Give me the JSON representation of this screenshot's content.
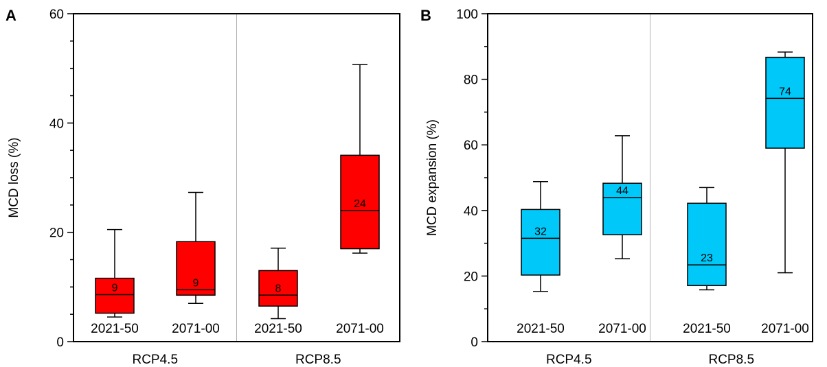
{
  "chart_data": [
    {
      "type": "box",
      "panel_label": "A",
      "ylabel": "MCD loss (%)",
      "ylim": [
        0,
        60
      ],
      "yticks": [
        0,
        20,
        40,
        60
      ],
      "color": "#ff0000",
      "groups": [
        "RCP4.5",
        "RCP8.5"
      ],
      "periods": [
        "2021-50",
        "2071-00"
      ],
      "boxes": [
        {
          "group": "RCP4.5",
          "period": "2021-50",
          "whisker_low": 4.5,
          "q1": 5.2,
          "median": 8.6,
          "q3": 11.6,
          "whisker_high": 20.5,
          "label": "9"
        },
        {
          "group": "RCP4.5",
          "period": "2071-00",
          "whisker_low": 7.0,
          "q1": 8.5,
          "median": 9.5,
          "q3": 18.3,
          "whisker_high": 27.3,
          "label": "9"
        },
        {
          "group": "RCP8.5",
          "period": "2021-50",
          "whisker_low": 4.2,
          "q1": 6.5,
          "median": 8.5,
          "q3": 13.0,
          "whisker_high": 17.1,
          "label": "8"
        },
        {
          "group": "RCP8.5",
          "period": "2071-00",
          "whisker_low": 16.2,
          "q1": 17.0,
          "median": 24.0,
          "q3": 34.1,
          "whisker_high": 50.7,
          "label": "24"
        }
      ]
    },
    {
      "type": "box",
      "panel_label": "B",
      "ylabel": "MCD expansion (%)",
      "ylim": [
        0,
        100
      ],
      "yticks": [
        0,
        20,
        40,
        60,
        80,
        100
      ],
      "color": "#00c8f8",
      "groups": [
        "RCP4.5",
        "RCP8.5"
      ],
      "periods": [
        "2021-50",
        "2071-00"
      ],
      "boxes": [
        {
          "group": "RCP4.5",
          "period": "2021-50",
          "whisker_low": 15.3,
          "q1": 20.3,
          "median": 31.5,
          "q3": 40.3,
          "whisker_high": 48.8,
          "label": "32"
        },
        {
          "group": "RCP4.5",
          "period": "2071-00",
          "whisker_low": 25.3,
          "q1": 32.6,
          "median": 43.9,
          "q3": 48.3,
          "whisker_high": 62.8,
          "label": "44"
        },
        {
          "group": "RCP8.5",
          "period": "2021-50",
          "whisker_low": 15.8,
          "q1": 17.1,
          "median": 23.4,
          "q3": 42.2,
          "whisker_high": 47.0,
          "label": "23"
        },
        {
          "group": "RCP8.5",
          "period": "2071-00",
          "whisker_low": 21.0,
          "q1": 59.0,
          "median": 74.2,
          "q3": 86.7,
          "whisker_high": 88.3,
          "label": "74"
        }
      ]
    }
  ]
}
